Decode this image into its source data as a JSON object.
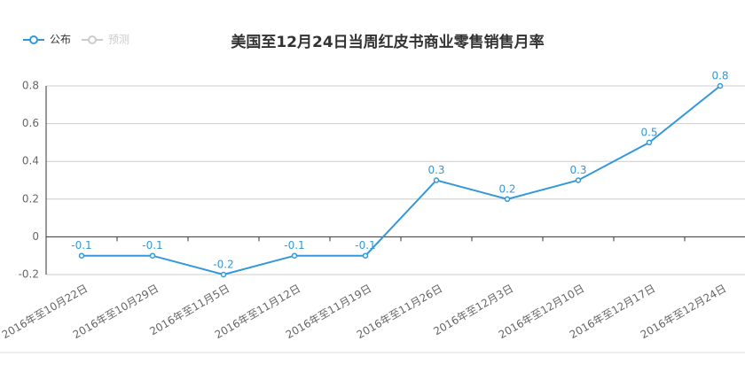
{
  "chart_data": {
    "type": "line",
    "title": "美国至12月24日当周红皮书商业零售销售月率",
    "categories": [
      "2016年至10月22日",
      "2016年至10月29日",
      "2016年至11月5日",
      "2016年至11月12日",
      "2016年至11月19日",
      "2016年至11月26日",
      "2016年至12月3日",
      "2016年至12月10日",
      "2016年至12月17日",
      "2016年至12月24日"
    ],
    "series": [
      {
        "name": "公布",
        "color": "#3398db",
        "values": [
          -0.1,
          -0.1,
          -0.2,
          -0.1,
          -0.1,
          0.3,
          0.2,
          0.3,
          0.5,
          0.8
        ]
      },
      {
        "name": "预测",
        "color": "#cccccc",
        "values": [
          null,
          null,
          null,
          null,
          null,
          null,
          null,
          null,
          null,
          null
        ]
      }
    ],
    "ylim": [
      -0.2,
      0.8
    ],
    "yticks": [
      -0.2,
      0,
      0.2,
      0.4,
      0.6,
      0.8
    ],
    "grid": true
  }
}
